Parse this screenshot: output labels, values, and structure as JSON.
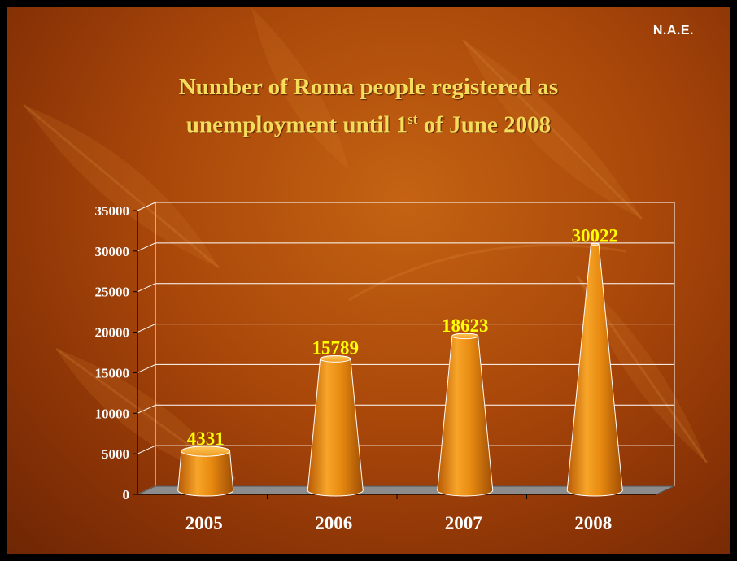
{
  "badge": "N.A.E.",
  "title_line1": "Number of Roma people registered as",
  "title_line2_pre": "unemployment until 1",
  "title_line2_sup": "st",
  "title_line2_post": " of June 2008",
  "colors": {
    "background": "#a9470a",
    "title": "#f5dd5c",
    "data_label": "#ffff00",
    "bar": "#e88a10",
    "floor": "#8c8c8c",
    "grid": "#ffffff"
  },
  "chart_data": {
    "type": "bar",
    "style": "3d-cone",
    "categories": [
      "2005",
      "2006",
      "2007",
      "2008"
    ],
    "values": [
      4331,
      15789,
      18623,
      30022
    ],
    "ylim": [
      0,
      35000
    ],
    "yticks": [
      "0",
      "5000",
      "10000",
      "15000",
      "20000",
      "25000",
      "30000",
      "35000"
    ],
    "grid": true,
    "legend": "none"
  }
}
